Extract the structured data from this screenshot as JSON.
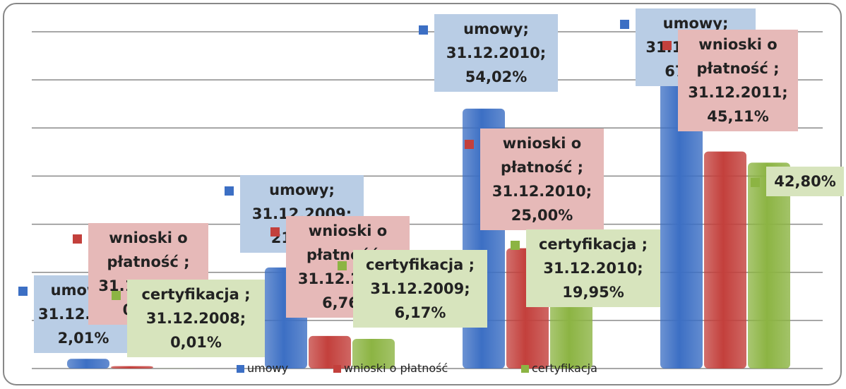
{
  "chart_data": {
    "type": "bar",
    "categories": [
      "31.12.2008",
      "31.12.2009",
      "31.12.2010",
      "31.12.2011"
    ],
    "series": [
      {
        "name": "umowy",
        "color": "#3c6fc4",
        "label_color": "#b9cde5",
        "values": [
          2.01,
          21.0,
          54.02,
          67.5
        ],
        "value_labels": [
          "umowy; 31.12.2008; 2,01%",
          "umowy; 31.12.2009; 21,00%",
          "umowy; 31.12.2010; 54,02%",
          "umowy; 31.12.2011; 67,50%"
        ]
      },
      {
        "name": "wnioski o płatność",
        "color": "#c3403c",
        "label_color": "#e6b9b8",
        "values": [
          0.5,
          6.76,
          25.0,
          45.11
        ],
        "value_labels": [
          "wnioski o płatność ; 31.12.2008; 0,50%",
          "wnioski o płatność ; 31.12.2009; 6,76%",
          "wnioski o płatność ; 31.12.2010; 25,00%",
          "wnioski o płatność ; 31.12.2011; 45,11%"
        ]
      },
      {
        "name": "certyfikacja",
        "color": "#8cb443",
        "label_color": "#d7e4bd",
        "values": [
          0.01,
          6.17,
          19.95,
          42.8
        ],
        "value_labels": [
          "certyfikacja ; 31.12.2008; 0,01%",
          "certyfikacja ; 31.12.2009; 6,17%",
          "certyfikacja ; 31.12.2010; 19,95%",
          "42,80%"
        ]
      }
    ],
    "ylim": [
      0,
      70
    ],
    "yticks": [
      0,
      10,
      20,
      30,
      40,
      50,
      60,
      70
    ],
    "grid": true,
    "legend": "bottom"
  }
}
